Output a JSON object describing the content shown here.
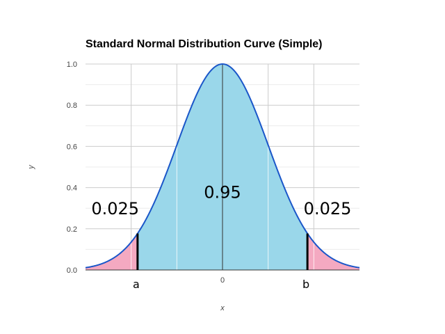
{
  "chart_data": {
    "type": "area",
    "title": "Standard Normal Distribution Curve (Simple)",
    "xlabel": "x",
    "ylabel": "y",
    "xlim": [
      -3,
      3
    ],
    "ylim": [
      0,
      1
    ],
    "y_ticks": [
      "0.0",
      "0.2",
      "0.4",
      "0.6",
      "0.8",
      "1.0"
    ],
    "x_ticks": [
      {
        "value": 0,
        "label": "0"
      }
    ],
    "curve": {
      "peak_y": 1.0,
      "color": "#1a56c9"
    },
    "regions": [
      {
        "from": -3,
        "to": -1.86,
        "label": "0.025",
        "fill": "#f4a9c1"
      },
      {
        "from": -1.86,
        "to": 1.86,
        "label": "0.95",
        "fill": "#9ad7ea"
      },
      {
        "from": 1.86,
        "to": 3,
        "label": "0.025",
        "fill": "#f4a9c1"
      }
    ],
    "markers": [
      {
        "x": -1.86,
        "label": "a"
      },
      {
        "x": 1.86,
        "label": "b"
      }
    ],
    "grid": true
  }
}
